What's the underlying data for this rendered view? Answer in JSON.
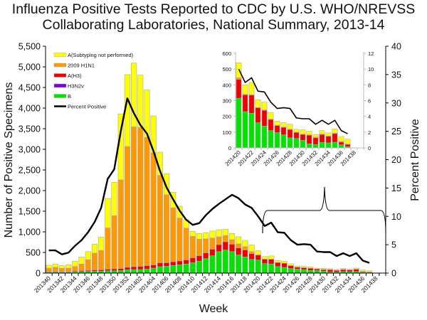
{
  "chart_data": {
    "type": "bar",
    "stacked": true,
    "title": "Influenza Positive Tests Reported to CDC by U.S. WHO/NREVSS Collaborating Laboratories, National Summary, 2013-14",
    "title_lines": [
      "Influenza Positive Tests Reported to CDC by U.S. WHO/NREVSS",
      "Collaborating Laboratories, National Summary, 2013-14"
    ],
    "xlabel": "Week",
    "ylabel": "Number of Positive Specimens",
    "y2label": "Percent Positive",
    "ylim": [
      0,
      5500
    ],
    "y2lim": [
      0,
      40
    ],
    "yticks": [
      "0",
      "500",
      "1,000",
      "1,500",
      "2,000",
      "2,500",
      "3,000",
      "3,500",
      "4,000",
      "4,500",
      "5,000",
      "5,500"
    ],
    "y2ticks": [
      "0",
      "5",
      "10",
      "15",
      "20",
      "25",
      "30",
      "35",
      "40"
    ],
    "legend_position": "top-left",
    "categories": [
      "201340",
      "201341",
      "201342",
      "201343",
      "201344",
      "201345",
      "201346",
      "201347",
      "201348",
      "201349",
      "201350",
      "201351",
      "201352",
      "201401",
      "201402",
      "201403",
      "201404",
      "201405",
      "201406",
      "201407",
      "201408",
      "201409",
      "201410",
      "201411",
      "201412",
      "201413",
      "201414",
      "201415",
      "201416",
      "201417",
      "201418",
      "201419",
      "201420",
      "201421",
      "201422",
      "201423",
      "201424",
      "201425",
      "201426",
      "201427",
      "201428",
      "201429",
      "201430",
      "201431",
      "201432",
      "201433",
      "201434",
      "201435",
      "201436",
      "201437",
      "201438",
      "201439"
    ],
    "xtick_labels": [
      "201340",
      "201342",
      "201344",
      "201346",
      "201348",
      "201350",
      "201352",
      "201402",
      "201404",
      "201406",
      "201408",
      "201410",
      "201412",
      "201414",
      "201416",
      "201418",
      "201420",
      "201422",
      "201424",
      "201426",
      "201428",
      "201430",
      "201432",
      "201434",
      "201436",
      "201438"
    ],
    "series": [
      {
        "name": "B",
        "color": "#00e400",
        "values": [
          20,
          25,
          20,
          20,
          30,
          35,
          40,
          45,
          45,
          55,
          55,
          60,
          80,
          85,
          85,
          95,
          120,
          155,
          165,
          185,
          200,
          220,
          250,
          290,
          350,
          420,
          520,
          560,
          520,
          440,
          390,
          330,
          315,
          230,
          220,
          160,
          138,
          110,
          97,
          83,
          64,
          60,
          48,
          26,
          22,
          35,
          32,
          36,
          20,
          8,
          0,
          0
        ]
      },
      {
        "name": "H3N2v",
        "color": "#7a00e4",
        "values": [
          0,
          0,
          0,
          0,
          0,
          0,
          0,
          0,
          0,
          0,
          0,
          0,
          0,
          0,
          0,
          0,
          0,
          0,
          0,
          0,
          0,
          0,
          0,
          0,
          0,
          0,
          0,
          0,
          0,
          0,
          0,
          0,
          0,
          0,
          0,
          0,
          0,
          0,
          0,
          0,
          0,
          0,
          0,
          0,
          0,
          0,
          0,
          0,
          0,
          0,
          0,
          0
        ]
      },
      {
        "name": "A(H3)",
        "color": "#f00000",
        "values": [
          15,
          15,
          15,
          15,
          20,
          25,
          25,
          30,
          35,
          40,
          45,
          50,
          60,
          70,
          75,
          85,
          80,
          95,
          85,
          90,
          95,
          100,
          120,
          130,
          140,
          160,
          170,
          200,
          180,
          170,
          170,
          140,
          120,
          107,
          115,
          95,
          100,
          70,
          45,
          47,
          52,
          38,
          38,
          55,
          42,
          50,
          42,
          55,
          17,
          14,
          0,
          0
        ]
      },
      {
        "name": "2009 H1N1",
        "color": "#ff9900",
        "values": [
          85,
          100,
          80,
          85,
          110,
          160,
          260,
          410,
          470,
          1000,
          1290,
          2150,
          2930,
          3390,
          3370,
          3110,
          2720,
          2120,
          1650,
          1310,
          1040,
          770,
          520,
          400,
          340,
          270,
          190,
          150,
          110,
          100,
          80,
          50,
          10,
          3,
          3,
          2,
          3,
          3,
          2,
          2,
          3,
          2,
          1,
          2,
          5,
          3,
          2,
          3,
          5,
          3,
          0,
          0
        ]
      },
      {
        "name": "A(Subtyping not performed)",
        "color": "#ffff00",
        "values": [
          70,
          80,
          65,
          80,
          130,
          170,
          195,
          215,
          320,
          715,
          810,
          1600,
          1740,
          1545,
          1270,
          1150,
          890,
          560,
          510,
          375,
          285,
          210,
          120,
          140,
          150,
          170,
          170,
          150,
          150,
          170,
          150,
          160,
          95,
          60,
          77,
          48,
          49,
          42,
          26,
          28,
          31,
          18,
          28,
          22,
          16,
          22,
          19,
          26,
          30,
          30,
          0,
          0
        ]
      }
    ],
    "line_series": {
      "name": "Percent Positive",
      "color": "#000000",
      "axis": "right",
      "values": [
        4.0,
        4.0,
        3.3,
        3.6,
        4.8,
        5.8,
        7.2,
        9.0,
        11.5,
        16.6,
        18.3,
        25.0,
        30.8,
        28.2,
        26.1,
        24.6,
        21.5,
        18.0,
        15.1,
        13.0,
        11.0,
        9.4,
        8.5,
        8.8,
        10.2,
        11.3,
        12.2,
        13.0,
        13.8,
        13.2,
        12.1,
        11.5,
        10.0,
        8.3,
        8.9,
        7.2,
        7.1,
        5.8,
        5.0,
        5.1,
        5.0,
        3.8,
        3.7,
        3.7,
        3.0,
        3.5,
        3.0,
        3.5,
        2.2,
        1.8,
        null,
        null
      ]
    },
    "inset": {
      "categories_from": "201420",
      "categories_to": "201439",
      "xtick_labels": [
        "201420",
        "201422",
        "201424",
        "201426",
        "201428",
        "201430",
        "201432",
        "201434",
        "201436",
        "201438"
      ],
      "ylim": [
        0,
        600
      ],
      "y2lim": [
        0,
        12
      ],
      "yticks": [
        "0",
        "100",
        "200",
        "300",
        "400",
        "500",
        "600"
      ],
      "y2ticks": [
        "0",
        "2",
        "4",
        "6",
        "8",
        "10",
        "12"
      ]
    }
  },
  "legend": [
    {
      "label": "A(Subtyping not performed)",
      "color": "#ffff00",
      "kind": "bar"
    },
    {
      "label": "2009 H1N1",
      "color": "#ff9900",
      "kind": "bar"
    },
    {
      "label": "A(H3)",
      "color": "#f00000",
      "kind": "bar"
    },
    {
      "label": "H3N2v",
      "color": "#7a00e4",
      "kind": "bar"
    },
    {
      "label": "B",
      "color": "#00e400",
      "kind": "bar"
    },
    {
      "label": "Percent Positive",
      "color": "#000000",
      "kind": "line"
    }
  ]
}
